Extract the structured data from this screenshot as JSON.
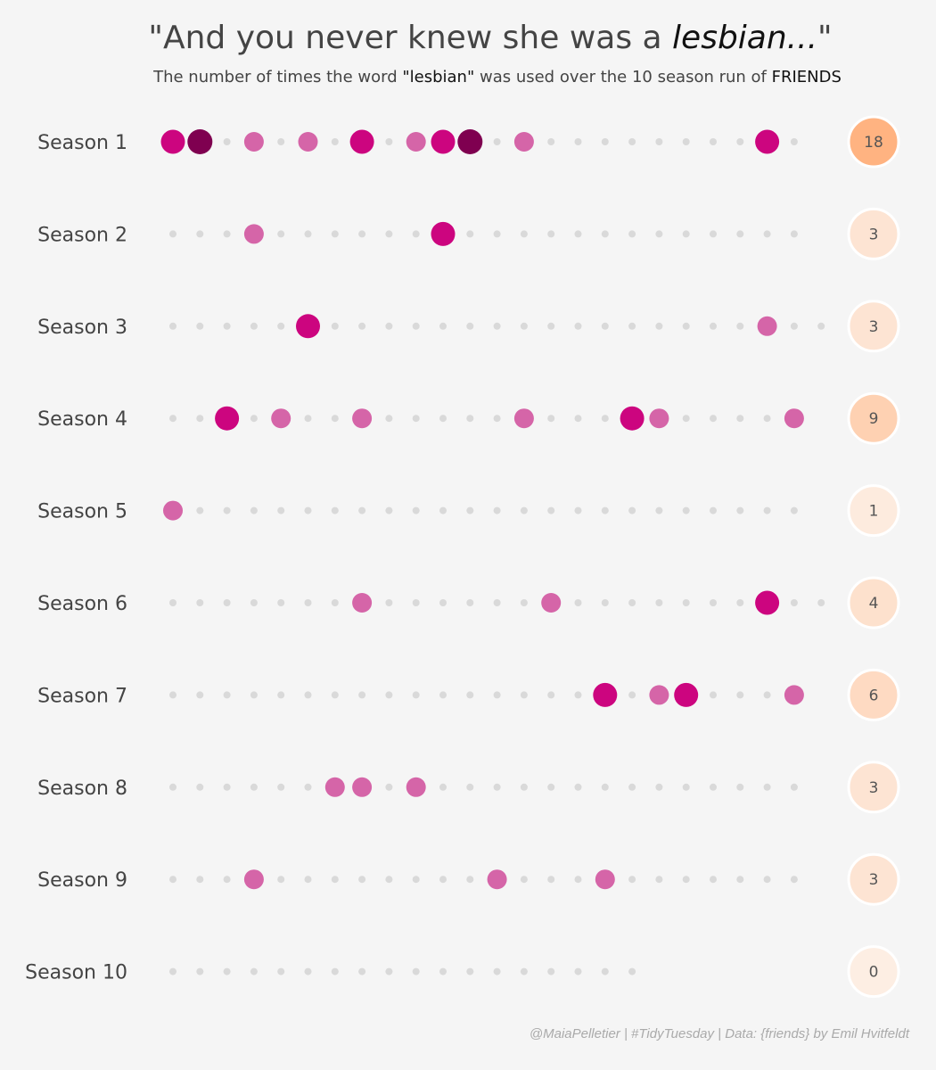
{
  "header": {
    "title_open": "\"And you never knew she was a ",
    "title_emph": "lesbian...",
    "title_close": "\"",
    "subtitle_pre": "The number of times the word ",
    "subtitle_word": "\"lesbian\"",
    "subtitle_mid": " was used over the 10 season run of ",
    "subtitle_show": "FRIENDS"
  },
  "caption": "@MaiaPelletier | #TidyTuesday | Data: {friends} by Emil Hvitfeldt",
  "colors": {
    "background": "#f5f5f5",
    "empty_dot": "#d9d9d9",
    "one_mention": "#d565a8",
    "two_mentions": "#cc057f",
    "three_mentions": "#7f0050",
    "label_text": "#444444",
    "total_low": "#fdeee3",
    "total_high": "#ffb381"
  },
  "chart_data": {
    "type": "scatter",
    "title": "\"And you never knew she was a lesbian...\"",
    "subtitle": "The number of times the word \"lesbian\" was used over the 10 season run of FRIENDS",
    "x_variable": "episode number",
    "y_variable": "season",
    "size_encodes": "mentions per episode",
    "seasons": [
      {
        "label": "Season 1",
        "episodes": 24,
        "total": "18",
        "mentions": [
          2,
          3,
          0,
          1,
          0,
          1,
          0,
          2,
          0,
          1,
          2,
          3,
          0,
          1,
          0,
          0,
          0,
          0,
          0,
          0,
          0,
          0,
          2,
          0
        ]
      },
      {
        "label": "Season 2",
        "episodes": 24,
        "total": "3",
        "mentions": [
          0,
          0,
          0,
          1,
          0,
          0,
          0,
          0,
          0,
          0,
          2,
          0,
          0,
          0,
          0,
          0,
          0,
          0,
          0,
          0,
          0,
          0,
          0,
          0
        ]
      },
      {
        "label": "Season 3",
        "episodes": 25,
        "total": "3",
        "mentions": [
          0,
          0,
          0,
          0,
          0,
          2,
          0,
          0,
          0,
          0,
          0,
          0,
          0,
          0,
          0,
          0,
          0,
          0,
          0,
          0,
          0,
          0,
          1,
          0,
          0
        ]
      },
      {
        "label": "Season 4",
        "episodes": 24,
        "total": "9",
        "mentions": [
          0,
          0,
          2,
          0,
          1,
          0,
          0,
          1,
          0,
          0,
          0,
          0,
          0,
          1,
          0,
          0,
          0,
          2,
          1,
          0,
          0,
          0,
          0,
          1
        ]
      },
      {
        "label": "Season 5",
        "episodes": 24,
        "total": "1",
        "mentions": [
          1,
          0,
          0,
          0,
          0,
          0,
          0,
          0,
          0,
          0,
          0,
          0,
          0,
          0,
          0,
          0,
          0,
          0,
          0,
          0,
          0,
          0,
          0,
          0
        ]
      },
      {
        "label": "Season 6",
        "episodes": 25,
        "total": "4",
        "mentions": [
          0,
          0,
          0,
          0,
          0,
          0,
          0,
          1,
          0,
          0,
          0,
          0,
          0,
          0,
          1,
          0,
          0,
          0,
          0,
          0,
          0,
          0,
          2,
          0,
          0
        ]
      },
      {
        "label": "Season 7",
        "episodes": 24,
        "total": "6",
        "mentions": [
          0,
          0,
          0,
          0,
          0,
          0,
          0,
          0,
          0,
          0,
          0,
          0,
          0,
          0,
          0,
          0,
          2,
          0,
          1,
          2,
          0,
          0,
          0,
          1
        ]
      },
      {
        "label": "Season 8",
        "episodes": 24,
        "total": "3",
        "mentions": [
          0,
          0,
          0,
          0,
          0,
          0,
          1,
          1,
          0,
          1,
          0,
          0,
          0,
          0,
          0,
          0,
          0,
          0,
          0,
          0,
          0,
          0,
          0,
          0
        ]
      },
      {
        "label": "Season 9",
        "episodes": 24,
        "total": "3",
        "mentions": [
          0,
          0,
          0,
          1,
          0,
          0,
          0,
          0,
          0,
          0,
          0,
          0,
          1,
          0,
          0,
          0,
          1,
          0,
          0,
          0,
          0,
          0,
          0,
          0
        ]
      },
      {
        "label": "Season 10",
        "episodes": 18,
        "total": "0",
        "mentions": [
          0,
          0,
          0,
          0,
          0,
          0,
          0,
          0,
          0,
          0,
          0,
          0,
          0,
          0,
          0,
          0,
          0,
          0
        ]
      }
    ]
  }
}
